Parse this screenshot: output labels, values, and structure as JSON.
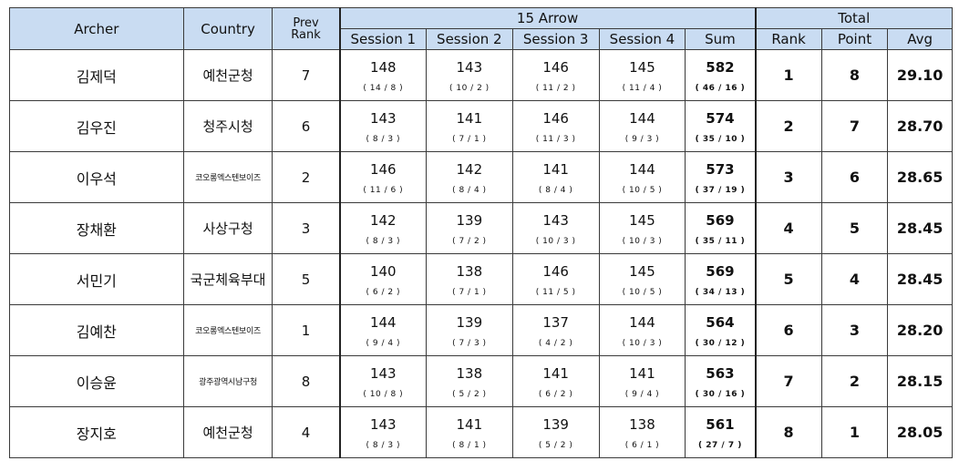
{
  "headers": {
    "archer": "Archer",
    "country": "Country",
    "prev_rank": "Prev\nRank",
    "arrow_group": "15 Arrow",
    "total_group": "Total",
    "session1": "Session 1",
    "session2": "Session 2",
    "session3": "Session 3",
    "session4": "Session 4",
    "sum": "Sum",
    "rank": "Rank",
    "point": "Point",
    "avg": "Avg"
  },
  "rows": [
    {
      "archer": "김제덕",
      "country": "예천군청",
      "country_small": false,
      "prev": "7",
      "s1": "148",
      "s1sub": "( 14 / 8 )",
      "s2": "143",
      "s2sub": "( 10 / 2 )",
      "s3": "146",
      "s3sub": "( 11 / 2 )",
      "s4": "145",
      "s4sub": "( 11 / 4 )",
      "sum": "582",
      "sumsub": "( 46 / 16 )",
      "rank": "1",
      "point": "8",
      "avg": "29.10"
    },
    {
      "archer": "김우진",
      "country": "청주시청",
      "country_small": false,
      "prev": "6",
      "s1": "143",
      "s1sub": "( 8 / 3 )",
      "s2": "141",
      "s2sub": "( 7 / 1 )",
      "s3": "146",
      "s3sub": "( 11 / 3 )",
      "s4": "144",
      "s4sub": "( 9 / 3 )",
      "sum": "574",
      "sumsub": "( 35 / 10 )",
      "rank": "2",
      "point": "7",
      "avg": "28.70"
    },
    {
      "archer": "이우석",
      "country": "코오롱엑스텐보이즈",
      "country_small": true,
      "prev": "2",
      "s1": "146",
      "s1sub": "( 11 / 6 )",
      "s2": "142",
      "s2sub": "( 8 / 4 )",
      "s3": "141",
      "s3sub": "( 8 / 4 )",
      "s4": "144",
      "s4sub": "( 10 / 5 )",
      "sum": "573",
      "sumsub": "( 37 / 19 )",
      "rank": "3",
      "point": "6",
      "avg": "28.65"
    },
    {
      "archer": "장채환",
      "country": "사상구청",
      "country_small": false,
      "prev": "3",
      "s1": "142",
      "s1sub": "( 8 / 3 )",
      "s2": "139",
      "s2sub": "( 7 / 2 )",
      "s3": "143",
      "s3sub": "( 10 / 3 )",
      "s4": "145",
      "s4sub": "( 10 / 3 )",
      "sum": "569",
      "sumsub": "( 35 / 11 )",
      "rank": "4",
      "point": "5",
      "avg": "28.45"
    },
    {
      "archer": "서민기",
      "country": "국군체육부대",
      "country_small": false,
      "prev": "5",
      "s1": "140",
      "s1sub": "( 6 / 2 )",
      "s2": "138",
      "s2sub": "( 7 / 1 )",
      "s3": "146",
      "s3sub": "( 11 / 5 )",
      "s4": "145",
      "s4sub": "( 10 / 5 )",
      "sum": "569",
      "sumsub": "( 34 / 13 )",
      "rank": "5",
      "point": "4",
      "avg": "28.45"
    },
    {
      "archer": "김예찬",
      "country": "코오롱엑스텐보이즈",
      "country_small": true,
      "prev": "1",
      "s1": "144",
      "s1sub": "( 9 / 4 )",
      "s2": "139",
      "s2sub": "( 7 / 3 )",
      "s3": "137",
      "s3sub": "( 4 / 2 )",
      "s4": "144",
      "s4sub": "( 10 / 3 )",
      "sum": "564",
      "sumsub": "( 30 / 12 )",
      "rank": "6",
      "point": "3",
      "avg": "28.20"
    },
    {
      "archer": "이승윤",
      "country": "광주광역시남구청",
      "country_small": true,
      "prev": "8",
      "s1": "143",
      "s1sub": "( 10 / 8 )",
      "s2": "138",
      "s2sub": "( 5 / 2 )",
      "s3": "141",
      "s3sub": "( 6 / 2 )",
      "s4": "141",
      "s4sub": "( 9 / 4 )",
      "sum": "563",
      "sumsub": "( 30 / 16 )",
      "rank": "7",
      "point": "2",
      "avg": "28.15"
    },
    {
      "archer": "장지호",
      "country": "예천군청",
      "country_small": false,
      "prev": "4",
      "s1": "143",
      "s1sub": "( 8 / 3 )",
      "s2": "141",
      "s2sub": "( 8 / 1 )",
      "s3": "139",
      "s3sub": "( 5 / 2 )",
      "s4": "138",
      "s4sub": "( 6 / 1 )",
      "sum": "561",
      "sumsub": "( 27 / 7 )",
      "rank": "8",
      "point": "1",
      "avg": "28.05"
    }
  ]
}
